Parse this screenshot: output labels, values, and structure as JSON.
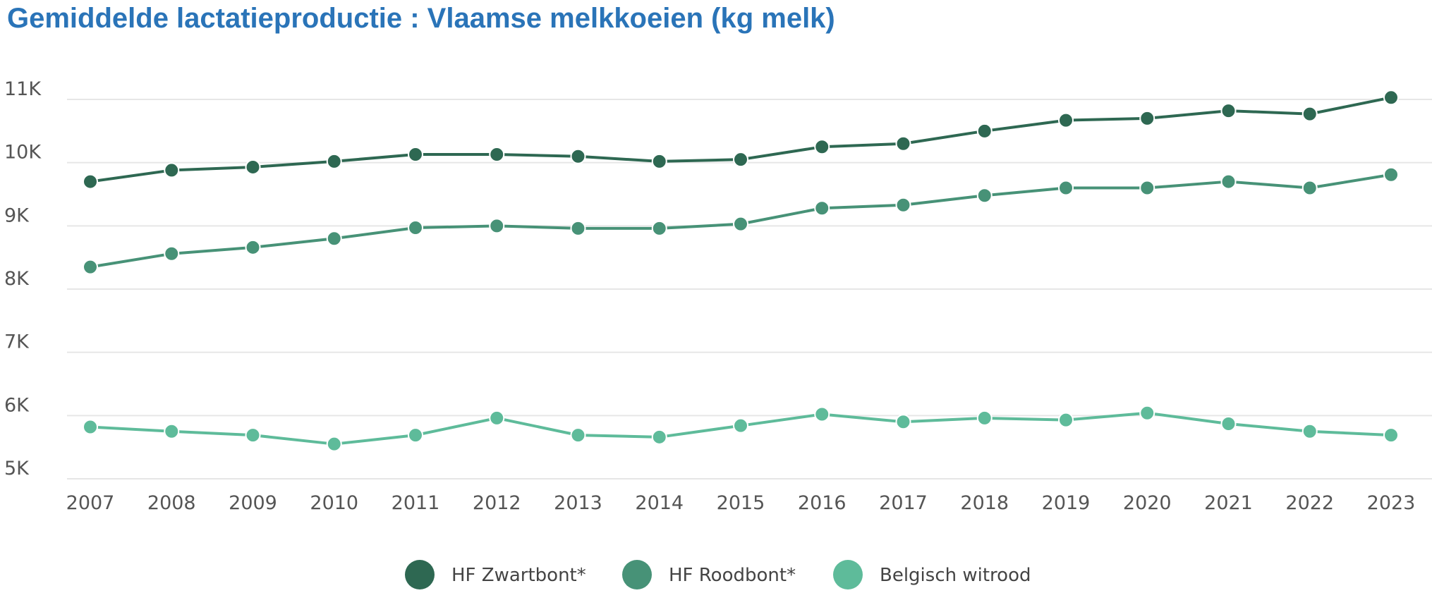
{
  "chart_data": {
    "type": "line",
    "title": "Gemiddelde lactatieproductie : Vlaamse melkkoeien (kg melk)",
    "xlabel": "",
    "ylabel": "",
    "categories": [
      "2007",
      "2008",
      "2009",
      "2010",
      "2011",
      "2012",
      "2013",
      "2014",
      "2015",
      "2016",
      "2017",
      "2018",
      "2019",
      "2020",
      "2021",
      "2022",
      "2023"
    ],
    "ylim": [
      5000,
      11000
    ],
    "yticks": [
      {
        "value": 5000,
        "label": "5K"
      },
      {
        "value": 6000,
        "label": "6K"
      },
      {
        "value": 7000,
        "label": "7K"
      },
      {
        "value": 8000,
        "label": "8K"
      },
      {
        "value": 9000,
        "label": "9K"
      },
      {
        "value": 10000,
        "label": "10K"
      },
      {
        "value": 11000,
        "label": "11K"
      }
    ],
    "grid": true,
    "legend_position": "bottom",
    "series": [
      {
        "name": "HF Zwartbont*",
        "color": "#2e6852",
        "values": [
          9700,
          9880,
          9930,
          10020,
          10130,
          10130,
          10100,
          10020,
          10050,
          10250,
          10300,
          10500,
          10670,
          10700,
          10820,
          10770,
          11030
        ]
      },
      {
        "name": "HF Roodbont*",
        "color": "#479277",
        "values": [
          8350,
          8560,
          8660,
          8800,
          8970,
          9000,
          8960,
          8960,
          9030,
          9280,
          9330,
          9480,
          9600,
          9600,
          9700,
          9600,
          9810
        ]
      },
      {
        "name": "Belgisch witrood",
        "color": "#5ebb9a",
        "values": [
          5820,
          5750,
          5690,
          5550,
          5690,
          5960,
          5690,
          5660,
          5840,
          6020,
          5900,
          5960,
          5930,
          6040,
          5870,
          5750,
          5690
        ]
      }
    ]
  }
}
